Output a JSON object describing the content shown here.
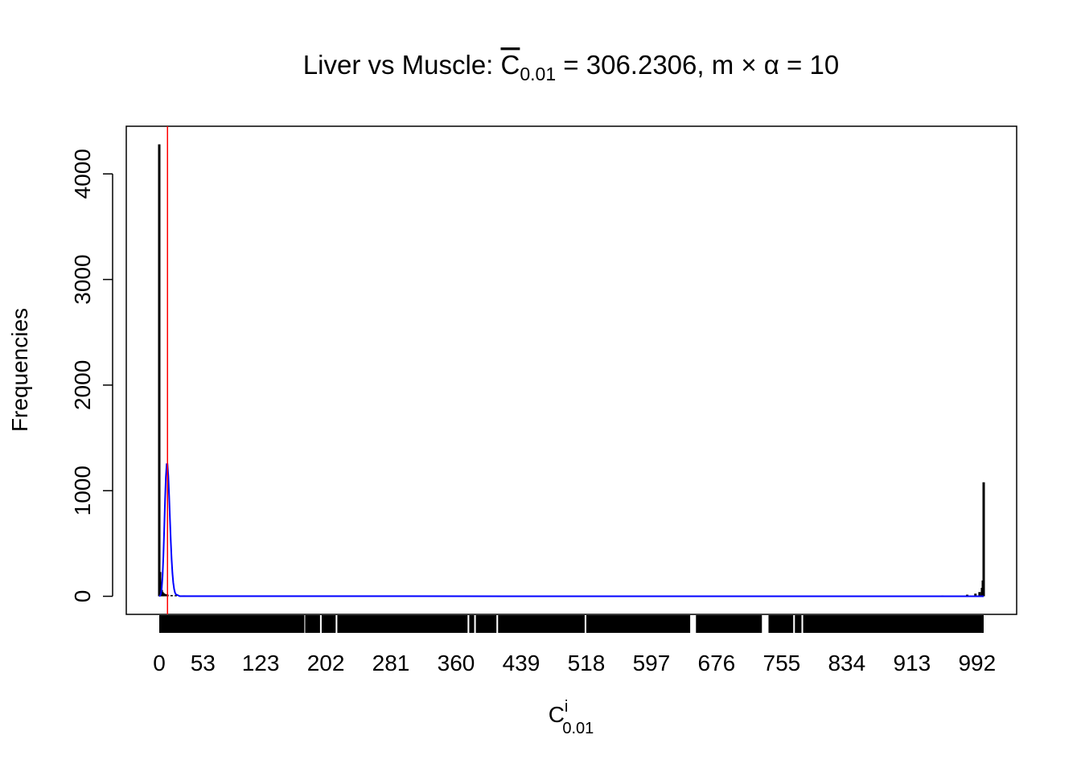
{
  "chart_data": {
    "type": "histline",
    "title": {
      "prefix": "Liver vs Muscle: ",
      "symbol": "C",
      "subscript": "0.01",
      "suffix": " = 306.2306, m × α = 10"
    },
    "x_label": {
      "symbol": "C",
      "superscript": "i",
      "subscript": "0.01"
    },
    "y_label": "Frequencies",
    "xlim": [
      -40,
      1040
    ],
    "ylim": [
      -171.2,
      4451.2
    ],
    "xticks": [
      0,
      53,
      123,
      202,
      281,
      360,
      439,
      518,
      597,
      676,
      755,
      834,
      913,
      992
    ],
    "yticks": [
      0,
      1000,
      2000,
      3000,
      4000
    ],
    "vline": {
      "x": 10,
      "color": "#ff0000"
    },
    "series": [
      {
        "color": "#000000",
        "x": [
          0,
          1,
          2,
          3,
          4,
          5,
          6,
          8,
          10,
          15,
          20,
          30,
          50,
          100,
          200,
          300,
          400,
          500,
          600,
          700,
          800,
          900,
          950,
          980,
          990,
          995,
          998,
          999,
          1000
        ],
        "values": [
          4280,
          230,
          120,
          60,
          40,
          30,
          25,
          20,
          15,
          12,
          10,
          8,
          5,
          3,
          2,
          2,
          2,
          2,
          2,
          2,
          3,
          5,
          8,
          15,
          25,
          40,
          80,
          150,
          1080
        ]
      },
      {
        "color": "#0000ff",
        "x": [
          0,
          1,
          2,
          3,
          4,
          5,
          6,
          7,
          8,
          9,
          10,
          11,
          12,
          13,
          14,
          15,
          16,
          17,
          18,
          19,
          20,
          25,
          1000
        ],
        "values": [
          0,
          5,
          23,
          76,
          189,
          378,
          631,
          901,
          1126,
          1251,
          1251,
          1137,
          948,
          729,
          521,
          347,
          217,
          128,
          71,
          37,
          19,
          1,
          0
        ]
      }
    ],
    "rug_ranges": [
      [
        0,
        176
      ],
      [
        177,
        195
      ],
      [
        197,
        214
      ],
      [
        216,
        374
      ],
      [
        376,
        382
      ],
      [
        384,
        409
      ],
      [
        411,
        516
      ],
      [
        518,
        644
      ],
      [
        651,
        731
      ],
      [
        739,
        769
      ],
      [
        771,
        779
      ],
      [
        781,
        1000
      ]
    ]
  }
}
